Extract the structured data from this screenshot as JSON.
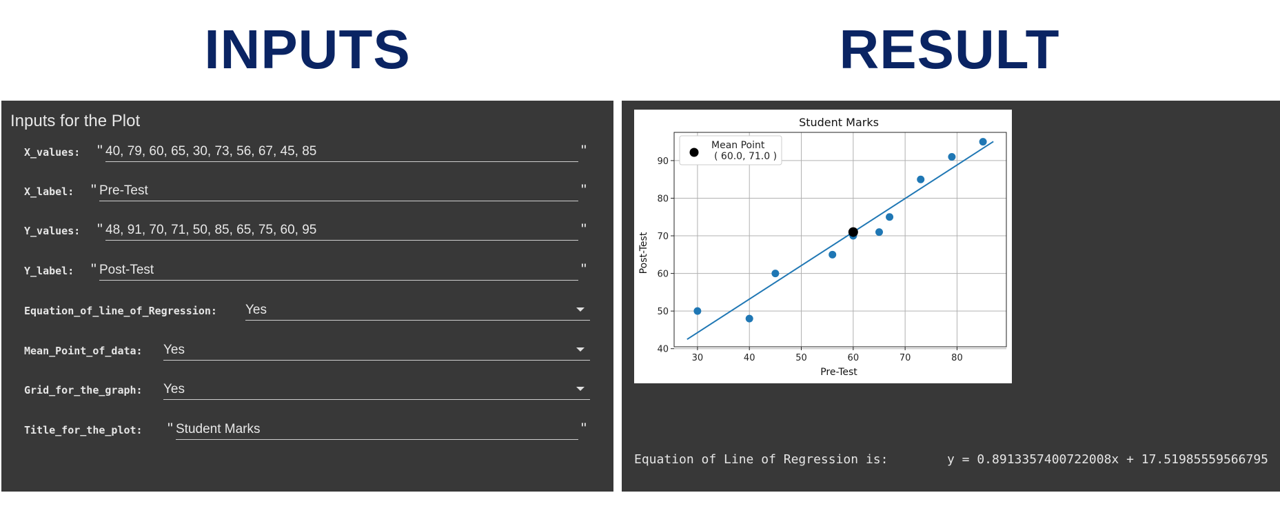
{
  "headings": {
    "inputs": "INPUTS",
    "result": "RESULT"
  },
  "colors": {
    "heading": "#0a2463",
    "panel_bg": "#383838",
    "text": "#e8e8e8",
    "series": "#1f77b4",
    "mean_point": "#000000"
  },
  "form": {
    "title": "Inputs for the Plot",
    "x_values": {
      "label": "X_values:",
      "value": "40, 79, 60, 65, 30, 73, 56, 67, 45, 85"
    },
    "x_label": {
      "label": "X_label:",
      "value": "Pre-Test"
    },
    "y_values": {
      "label": "Y_values:",
      "value": "48, 91, 70, 71, 50, 85, 65, 75, 60, 95"
    },
    "y_label": {
      "label": "Y_label:",
      "value": "Post-Test"
    },
    "equation": {
      "label": "Equation_of_line_of_Regression:",
      "value": "Yes"
    },
    "mean_point": {
      "label": "Mean_Point_of_data:",
      "value": "Yes"
    },
    "grid": {
      "label": "Grid_for_the_graph:",
      "value": "Yes"
    },
    "title_field": {
      "label": "Title_for_the_plot:",
      "value": "Student Marks"
    },
    "quote": "\""
  },
  "result": {
    "equation_prefix": "Equation of Line of Regression is:",
    "equation_value": "y = 0.8913357400722008x + 17.51985559566795"
  },
  "chart_data": {
    "type": "scatter",
    "title": "Student Marks",
    "xlabel": "Pre-Test",
    "ylabel": "Post-Test",
    "xlim": [
      25.5,
      89.5
    ],
    "ylim": [
      40.5,
      97.5
    ],
    "xticks": [
      30,
      40,
      50,
      60,
      70,
      80
    ],
    "yticks": [
      40,
      50,
      60,
      70,
      80,
      90
    ],
    "grid": true,
    "legend_position": "top-left",
    "legend_label_line1": "Mean Point",
    "legend_label_line2": "( 60.0, 71.0 )",
    "series": [
      {
        "x": [
          40,
          79,
          60,
          65,
          30,
          73,
          56,
          67,
          45,
          85
        ],
        "y": [
          48,
          91,
          70,
          71,
          50,
          85,
          65,
          75,
          60,
          95
        ]
      }
    ],
    "regression": {
      "slope": 0.8913357400722008,
      "intercept": 17.51985559566795,
      "x_range": [
        28,
        87
      ]
    },
    "mean_point": {
      "x": 60.0,
      "y": 71.0
    }
  }
}
